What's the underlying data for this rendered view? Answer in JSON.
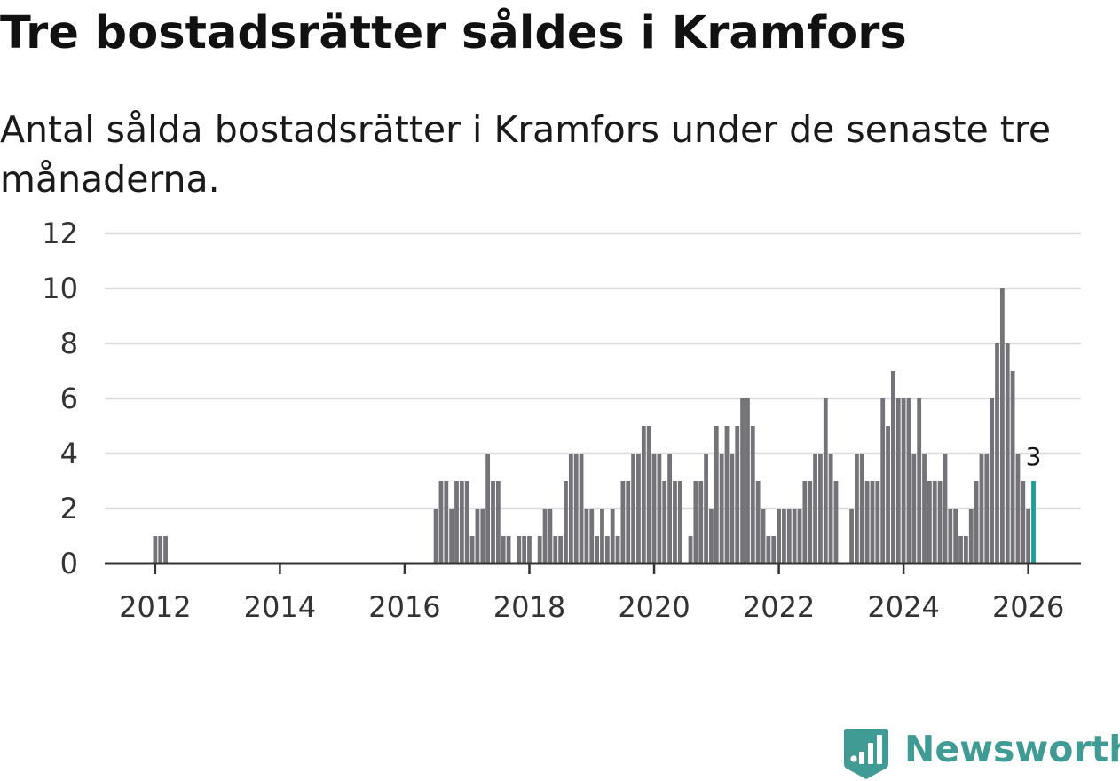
{
  "title": "Tre bostadsrätter såldes i Kramfors",
  "subtitle": "Antal sålda bostadsrätter i Kramfors under de senaste tre månaderna.",
  "brand": {
    "name": "Newsworthy",
    "icon": "newsworthy-logo-icon",
    "color": "#3f9b93"
  },
  "colors": {
    "bar": "#747378",
    "highlight": "#1b9e95",
    "grid": "#dcdcdc",
    "axis": "#333333"
  },
  "chart_data": {
    "type": "bar",
    "title": "Tre bostadsrätter såldes i Kramfors",
    "xlabel": "",
    "ylabel": "",
    "ylim": [
      0,
      12
    ],
    "yticks": [
      0,
      2,
      4,
      6,
      8,
      10,
      12
    ],
    "xticks": [
      "2012",
      "2014",
      "2016",
      "2018",
      "2020",
      "2022",
      "2024",
      "2026"
    ],
    "start": "2011-12",
    "end": "2026-03",
    "grid": true,
    "highlight_label": "3",
    "series": [
      {
        "name": "Antal sålda bostadsrätter",
        "values": [
          0,
          1,
          1,
          1,
          0,
          0,
          0,
          0,
          0,
          0,
          0,
          0,
          0,
          0,
          0,
          0,
          0,
          0,
          0,
          0,
          0,
          0,
          0,
          0,
          0,
          0,
          0,
          0,
          0,
          0,
          0,
          0,
          0,
          0,
          0,
          0,
          0,
          0,
          0,
          0,
          0,
          0,
          0,
          0,
          0,
          0,
          0,
          0,
          0,
          0,
          0,
          0,
          0,
          0,
          0,
          2,
          3,
          3,
          2,
          3,
          3,
          3,
          1,
          2,
          2,
          4,
          3,
          3,
          1,
          1,
          0,
          1,
          1,
          1,
          0,
          1,
          2,
          2,
          1,
          1,
          3,
          4,
          4,
          4,
          2,
          2,
          1,
          2,
          1,
          2,
          1,
          3,
          3,
          4,
          4,
          5,
          5,
          4,
          4,
          3,
          4,
          3,
          3,
          0,
          1,
          3,
          3,
          4,
          2,
          5,
          4,
          5,
          4,
          5,
          6,
          6,
          5,
          3,
          2,
          1,
          1,
          2,
          2,
          2,
          2,
          2,
          3,
          3,
          4,
          4,
          6,
          4,
          3,
          0,
          0,
          2,
          4,
          4,
          3,
          3,
          3,
          6,
          5,
          7,
          6,
          6,
          6,
          4,
          6,
          4,
          3,
          3,
          3,
          4,
          2,
          2,
          1,
          1,
          2,
          3,
          4,
          4,
          6,
          8,
          10,
          8,
          7,
          4,
          3,
          2,
          3
        ]
      }
    ]
  }
}
